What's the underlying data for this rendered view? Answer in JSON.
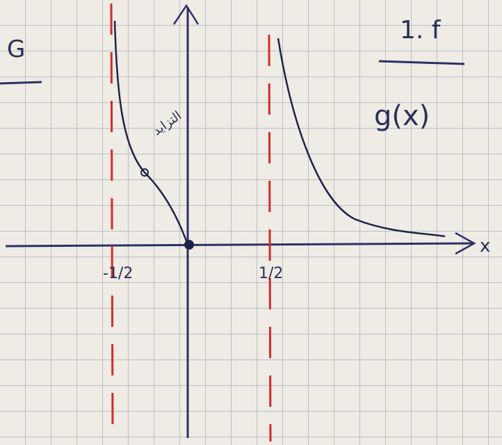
{
  "labels": {
    "top_left": "G",
    "top_right": "1. f",
    "function_name": "g(x)",
    "curve_note": "التزايد",
    "left_asymptote": "-1/2",
    "right_asymptote": "1/2",
    "x_axis": "x"
  }
}
